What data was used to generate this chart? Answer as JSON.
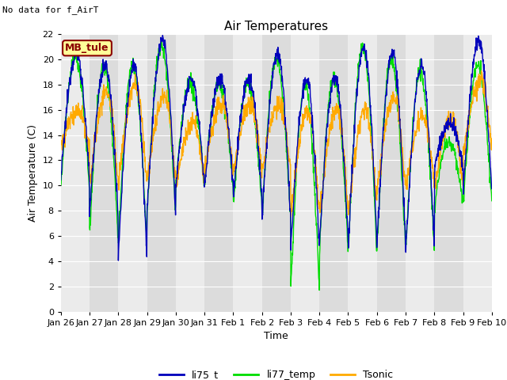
{
  "title": "Air Temperatures",
  "no_data_text": "No data for f_AirT",
  "mb_tule_label": "MB_tule",
  "ylabel": "Air Temperature (C)",
  "xlabel": "Time",
  "ylim": [
    0,
    22
  ],
  "yticks": [
    0,
    2,
    4,
    6,
    8,
    10,
    12,
    14,
    16,
    18,
    20,
    22
  ],
  "x_tick_labels": [
    "Jan 26",
    "Jan 27",
    "Jan 28",
    "Jan 29",
    "Jan 30",
    "Jan 31",
    "Feb 1",
    "Feb 2",
    "Feb 3",
    "Feb 4",
    "Feb 5",
    "Feb 6",
    "Feb 7",
    "Feb 8",
    "Feb 9",
    "Feb 10"
  ],
  "line_colors": {
    "li75_t": "#0000bb",
    "li77_temp": "#00dd00",
    "Tsonic": "#ffaa00"
  },
  "legend_labels": [
    "li75_t",
    "li77_temp",
    "Tsonic"
  ],
  "bg_band_color_dark": "#dcdcdc",
  "bg_band_color_light": "#ebebeb",
  "plot_bg_color": "#ebebeb",
  "grid_color": "#ffffff",
  "title_fontsize": 11,
  "label_fontsize": 9,
  "tick_fontsize": 8
}
